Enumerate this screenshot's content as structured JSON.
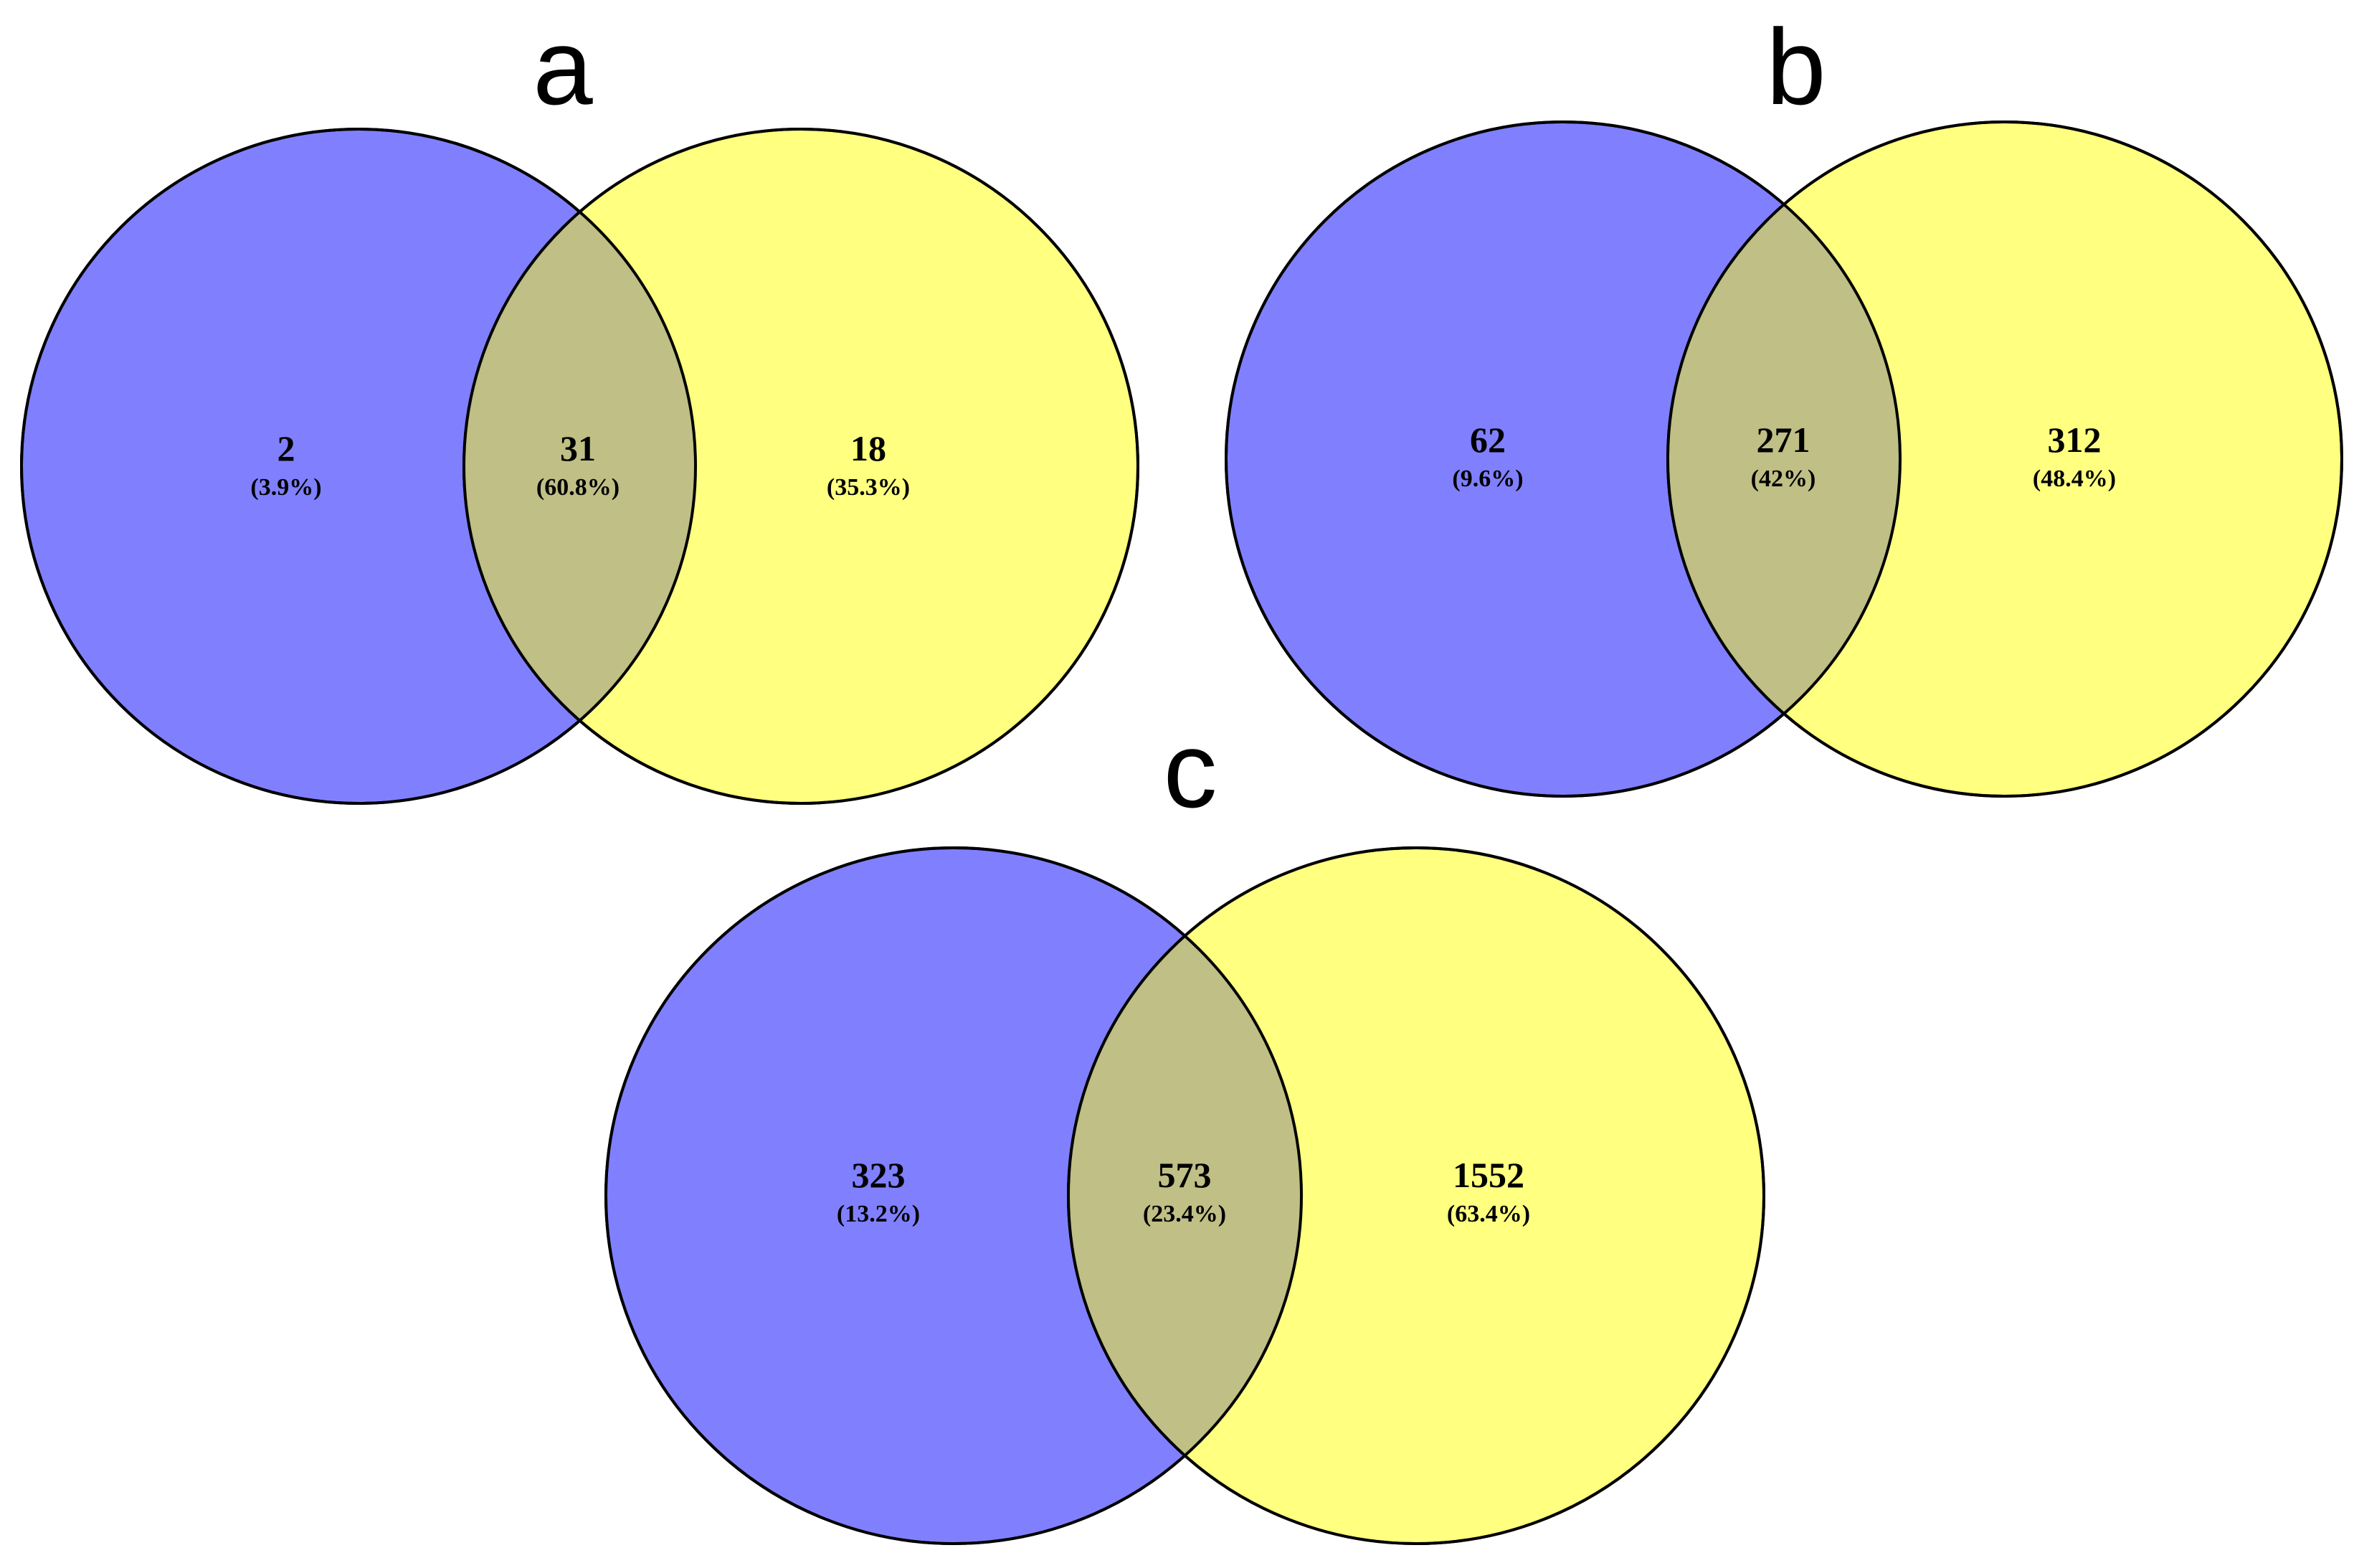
{
  "colors": {
    "set_a": "#8080ff",
    "set_b": "#ffff80",
    "overlap": "#bfbf86",
    "outline": "#000000"
  },
  "panels": [
    {
      "letter": "a",
      "left": {
        "count": "2",
        "percent": "(3.9%)"
      },
      "overlap": {
        "count": "31",
        "percent": "(60.8%)"
      },
      "right": {
        "count": "18",
        "percent": "(35.3%)"
      }
    },
    {
      "letter": "b",
      "left": {
        "count": "62",
        "percent": "(9.6%)"
      },
      "overlap": {
        "count": "271",
        "percent": "(42%)"
      },
      "right": {
        "count": "312",
        "percent": "(48.4%)"
      }
    },
    {
      "letter": "c",
      "left": {
        "count": "323",
        "percent": "(13.2%)"
      },
      "overlap": {
        "count": "573",
        "percent": "(23.4%)"
      },
      "right": {
        "count": "1552",
        "percent": "(63.4%)"
      }
    }
  ]
}
